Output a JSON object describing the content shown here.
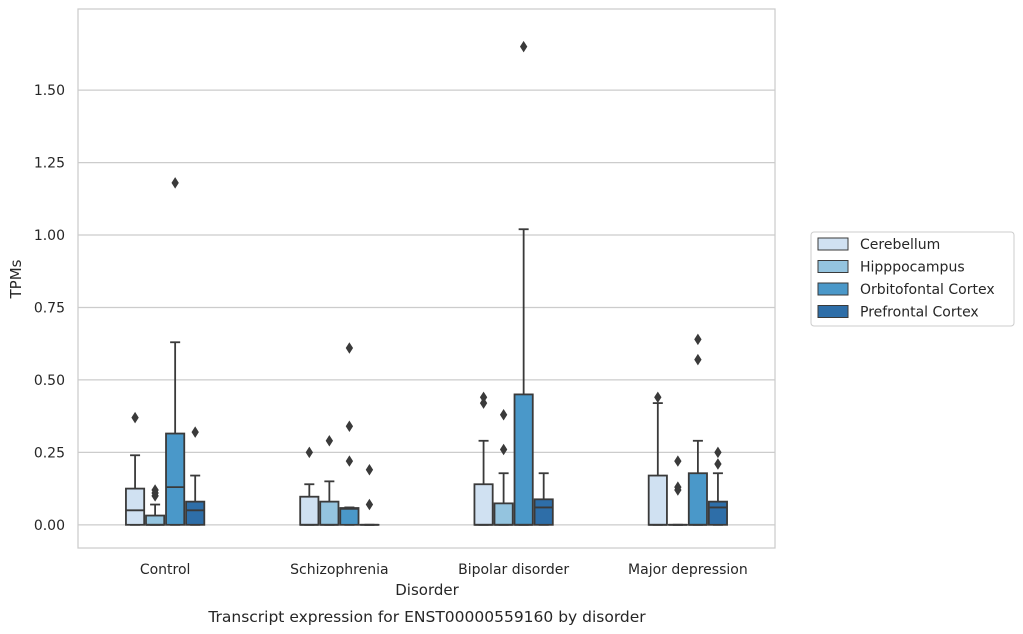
{
  "chart_data": {
    "type": "box",
    "caption": "Transcript expression for ENST00000559160 by disorder",
    "xlabel": "Disorder",
    "ylabel": "TPMs",
    "ylim": [
      -0.08,
      1.78
    ],
    "yticks": [
      "0.00",
      "0.25",
      "0.50",
      "0.75",
      "1.00",
      "1.25",
      "1.50"
    ],
    "grid": true,
    "legend_position": "right",
    "categories": [
      "Control",
      "Schizophrenia",
      "Bipolar disorder",
      "Major depression"
    ],
    "series": [
      {
        "name": "Cerebellum",
        "color": "#d0e1f2",
        "boxes": [
          {
            "whisker_low": 0,
            "q1": 0,
            "median": 0.05,
            "q3": 0.125,
            "whisker_high": 0.24,
            "outliers": [
              0.37
            ]
          },
          {
            "whisker_low": 0,
            "q1": 0,
            "median": 0,
            "q3": 0.097,
            "whisker_high": 0.14,
            "outliers": [
              0.25
            ]
          },
          {
            "whisker_low": 0,
            "q1": 0,
            "median": 0,
            "q3": 0.14,
            "whisker_high": 0.29,
            "outliers": [
              0.42,
              0.44
            ]
          },
          {
            "whisker_low": 0,
            "q1": 0,
            "median": 0,
            "q3": 0.17,
            "whisker_high": 0.42,
            "outliers": [
              0.44
            ]
          }
        ]
      },
      {
        "name": "Hipppocampus",
        "color": "#94c4df",
        "boxes": [
          {
            "whisker_low": 0,
            "q1": 0,
            "median": 0,
            "q3": 0.032,
            "whisker_high": 0.07,
            "outliers": [
              0.1,
              0.11,
              0.12
            ]
          },
          {
            "whisker_low": 0,
            "q1": 0,
            "median": 0,
            "q3": 0.08,
            "whisker_high": 0.15,
            "outliers": [
              0.29
            ]
          },
          {
            "whisker_low": 0,
            "q1": 0,
            "median": 0,
            "q3": 0.074,
            "whisker_high": 0.178,
            "outliers": [
              0.26,
              0.38
            ]
          },
          {
            "whisker_low": 0,
            "q1": 0,
            "median": 0,
            "q3": 0,
            "whisker_high": 0,
            "outliers": [
              0.12,
              0.13,
              0.22
            ]
          }
        ]
      },
      {
        "name": "Orbitofontal Cortex",
        "color": "#4a98c9",
        "boxes": [
          {
            "whisker_low": 0,
            "q1": 0,
            "median": 0.13,
            "q3": 0.315,
            "whisker_high": 0.63,
            "outliers": [
              1.18
            ]
          },
          {
            "whisker_low": 0,
            "q1": 0,
            "median": 0.055,
            "q3": 0.058,
            "whisker_high": 0.06,
            "outliers": [
              0.22,
              0.34,
              0.61
            ]
          },
          {
            "whisker_low": 0,
            "q1": 0,
            "median": 0,
            "q3": 0.45,
            "whisker_high": 1.02,
            "outliers": [
              1.65
            ]
          },
          {
            "whisker_low": 0,
            "q1": 0,
            "median": 0,
            "q3": 0.178,
            "whisker_high": 0.29,
            "outliers": [
              0.57,
              0.64
            ]
          }
        ]
      },
      {
        "name": "Prefrontal Cortex",
        "color": "#2e6ea8",
        "boxes": [
          {
            "whisker_low": 0,
            "q1": 0,
            "median": 0.05,
            "q3": 0.08,
            "whisker_high": 0.17,
            "outliers": [
              0.32
            ]
          },
          {
            "whisker_low": 0,
            "q1": 0,
            "median": 0,
            "q3": 0,
            "whisker_high": 0,
            "outliers": [
              0.07,
              0.19
            ]
          },
          {
            "whisker_low": 0,
            "q1": 0,
            "median": 0.06,
            "q3": 0.088,
            "whisker_high": 0.178,
            "outliers": []
          },
          {
            "whisker_low": 0,
            "q1": 0,
            "median": 0.06,
            "q3": 0.08,
            "whisker_high": 0.178,
            "outliers": [
              0.21,
              0.25
            ]
          }
        ]
      }
    ]
  }
}
